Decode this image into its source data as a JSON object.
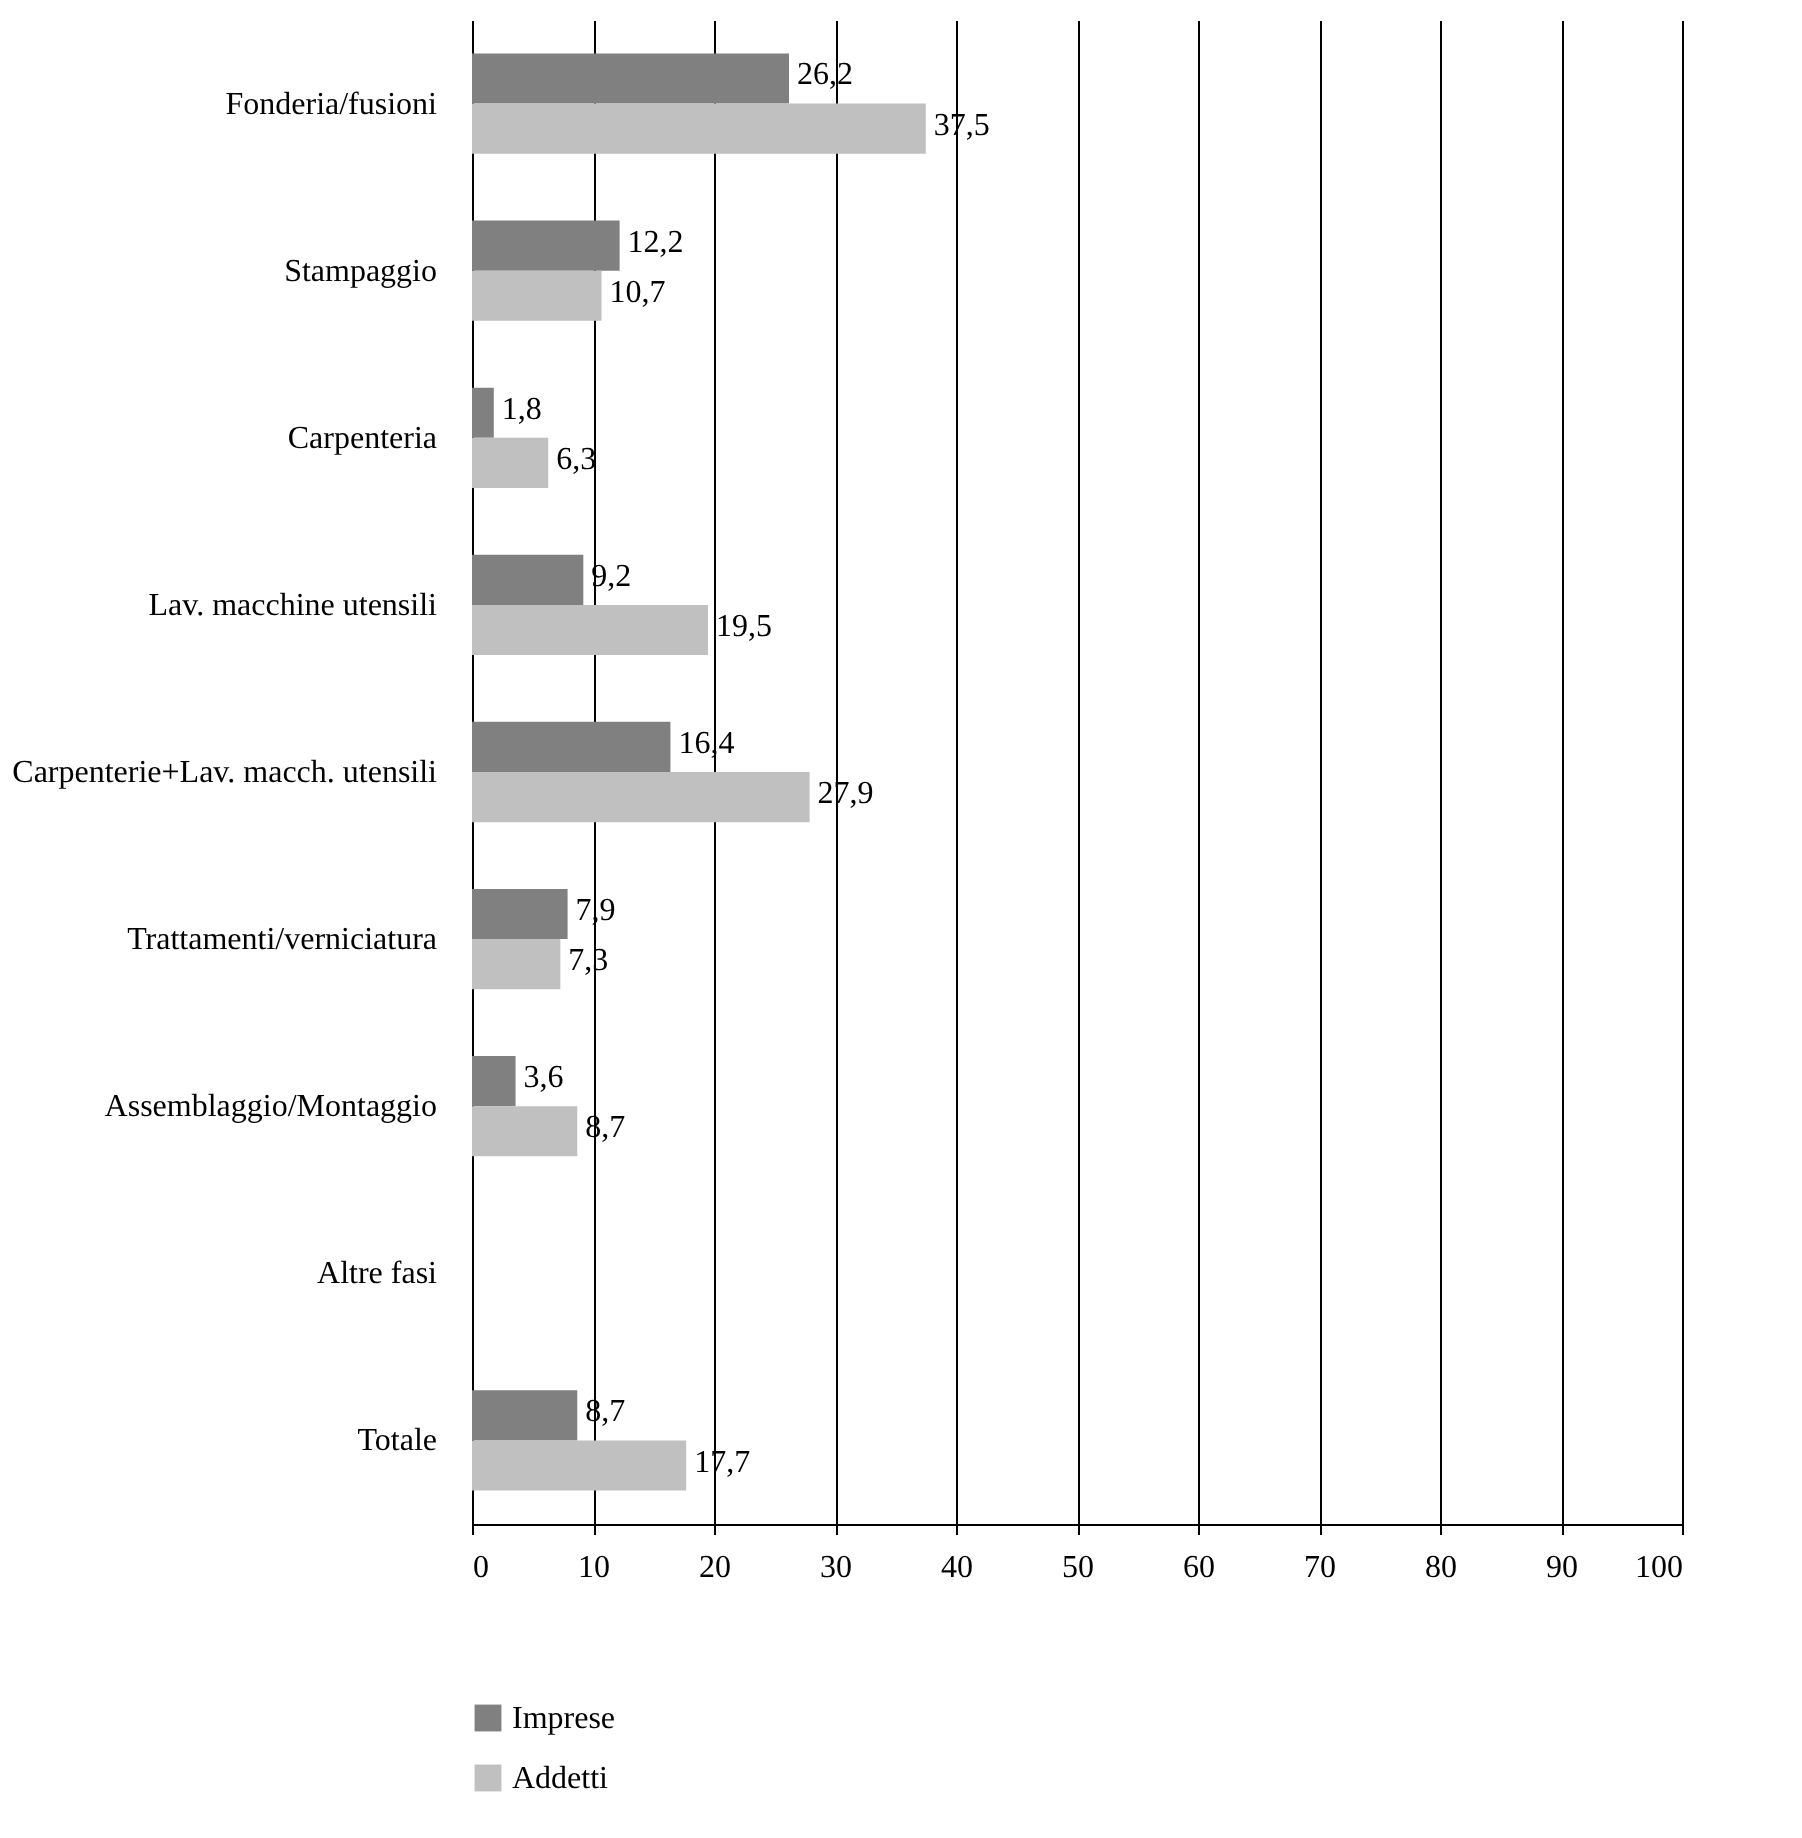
{
  "chart_data": {
    "type": "bar",
    "orientation": "horizontal",
    "categories": [
      "Fonderia/fusioni",
      "Stampaggio",
      "Carpenteria",
      "Lav. macchine utensili",
      "Carpenterie+Lav. macch. utensili",
      "Trattamenti/verniciatura",
      "Assemblaggio/Montaggio",
      "Altre fasi",
      "Totale"
    ],
    "series": [
      {
        "name": "Imprese",
        "color": "#808080",
        "values": [
          26.2,
          12.2,
          1.8,
          9.2,
          16.4,
          7.9,
          3.6,
          null,
          8.7
        ],
        "value_labels": [
          "26,2",
          "12,2",
          "1,8",
          "9,2",
          "16,4",
          "7,9",
          "3,6",
          null,
          "8,7"
        ]
      },
      {
        "name": "Addetti",
        "color": "#c0c0c0",
        "values": [
          37.5,
          10.7,
          6.3,
          19.5,
          27.9,
          7.3,
          8.7,
          null,
          17.7
        ],
        "value_labels": [
          "37,5",
          "10,7",
          "6,3",
          "19,5",
          "27,9",
          "7,3",
          "8,7",
          null,
          "17,7"
        ]
      }
    ],
    "xlim": [
      0,
      100
    ],
    "xticks": [
      0,
      10,
      20,
      30,
      40,
      50,
      60,
      70,
      80,
      90,
      100
    ],
    "grid": "x",
    "legend": "bottom"
  }
}
